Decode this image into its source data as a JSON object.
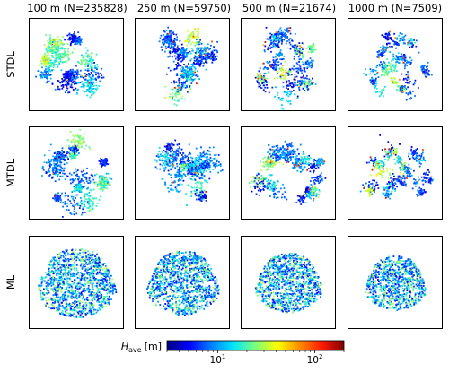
{
  "chart_data": {
    "type": "scatter",
    "columns": [
      "100 m (N=235828)",
      "250 m (N=59750)",
      "500 m (N=21674)",
      "1000 m (N=7509)"
    ],
    "rows": [
      "STDL",
      "MTDL",
      "ML"
    ],
    "colorbar": {
      "label_prefix": "H",
      "label_sub": "ave",
      "label_unit": "[m]",
      "scale": "log",
      "range": [
        3,
        200
      ],
      "ticks": [
        {
          "label": "10",
          "exp": "1",
          "value": 10
        },
        {
          "label": "10",
          "exp": "2",
          "value": 100
        }
      ],
      "colormap": [
        "#00007f",
        "#0000ff",
        "#0080ff",
        "#00e5ff",
        "#7cff79",
        "#ffff00",
        "#ff8c00",
        "#ff1a00",
        "#800000"
      ]
    }
  }
}
